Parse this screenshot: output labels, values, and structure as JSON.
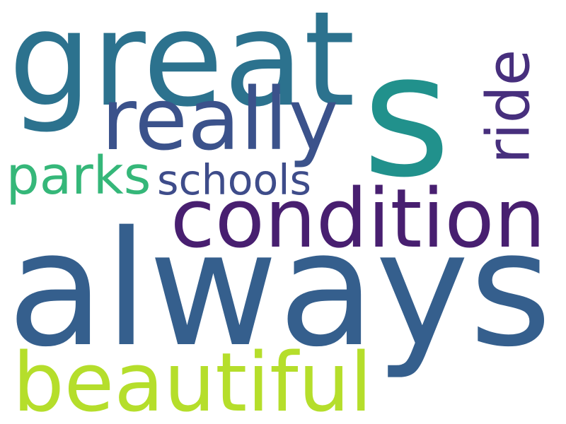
{
  "word_cloud": {
    "background": "#ffffff",
    "words": [
      {
        "id": "always",
        "text": "always",
        "color": "#355f8d"
      },
      {
        "id": "s",
        "text": "s",
        "color": "#21918c"
      },
      {
        "id": "great",
        "text": "great",
        "color": "#2c728e"
      },
      {
        "id": "condition",
        "text": "condition",
        "color": "#481f70"
      },
      {
        "id": "beautiful",
        "text": "beautiful",
        "color": "#b5de2b"
      },
      {
        "id": "really",
        "text": "really",
        "color": "#3b528b"
      },
      {
        "id": "ride",
        "text": "ride",
        "color": "#472f7d"
      },
      {
        "id": "parks",
        "text": "parks",
        "color": "#35b779"
      },
      {
        "id": "schools",
        "text": "schools",
        "color": "#3e4c8a"
      }
    ]
  }
}
